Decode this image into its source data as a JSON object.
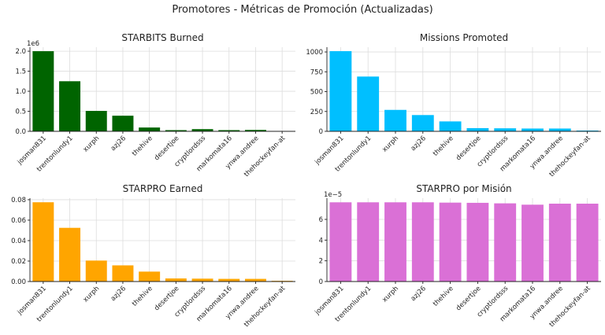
{
  "figure": {
    "title": "Promotores - Métricas de Promoción (Actualizadas)"
  },
  "chart_data": [
    {
      "type": "bar",
      "title": "STARBITS Burned",
      "categories": [
        "josman831",
        "trentonlundy1",
        "xurph",
        "azj26",
        "thehive",
        "desertjoe",
        "cryptlordsss",
        "markomata16",
        "ynwa.andree",
        "thehockeyfan-at"
      ],
      "values": [
        2000000,
        1250000,
        510000,
        390000,
        95000,
        30000,
        55000,
        30000,
        35000,
        5000
      ],
      "ylim": [
        0,
        2100000
      ],
      "yticks": [
        0,
        500000,
        1000000,
        1500000,
        2000000
      ],
      "ytick_labels": [
        "0.0",
        "0.5",
        "1.0",
        "1.5",
        "2.0"
      ],
      "multiplier_label": "1e6",
      "color": "#006400",
      "grid": true
    },
    {
      "type": "bar",
      "title": "Missions Promoted",
      "categories": [
        "josman831",
        "trentonlundy1",
        "xurph",
        "azj26",
        "thehive",
        "desertjoe",
        "cryptlordsss",
        "markomata16",
        "ynwa.andree",
        "thehockeyfan-at"
      ],
      "values": [
        1010,
        690,
        270,
        205,
        125,
        40,
        38,
        35,
        35,
        10
      ],
      "ylim": [
        0,
        1060
      ],
      "yticks": [
        0,
        250,
        500,
        750,
        1000
      ],
      "ytick_labels": [
        "0",
        "250",
        "500",
        "750",
        "1000"
      ],
      "multiplier_label": "",
      "color": "#00BFFF",
      "grid": true
    },
    {
      "type": "bar",
      "title": "STARPRO Earned",
      "categories": [
        "josman831",
        "trentonlundy1",
        "xurph",
        "azj26",
        "thehive",
        "desertjoe",
        "cryptlordsss",
        "markomata16",
        "ynwa.andree",
        "thehockeyfan-at"
      ],
      "values": [
        0.0775,
        0.0525,
        0.0205,
        0.0158,
        0.0097,
        0.003,
        0.0028,
        0.0026,
        0.0026,
        0.0007
      ],
      "ylim": [
        0,
        0.0815
      ],
      "yticks": [
        0,
        0.02,
        0.04,
        0.06,
        0.08
      ],
      "ytick_labels": [
        "0.00",
        "0.02",
        "0.04",
        "0.06",
        "0.08"
      ],
      "multiplier_label": "",
      "color": "#FFA500",
      "grid": true
    },
    {
      "type": "bar",
      "title": "STARPRO por Misión",
      "categories": [
        "josman831",
        "trentonlundy1",
        "xurph",
        "azj26",
        "thehive",
        "desertjoe",
        "cryptlordsss",
        "markomata16",
        "ynwa.andree",
        "thehockeyfan-at"
      ],
      "values": [
        7.65e-05,
        7.65e-05,
        7.65e-05,
        7.65e-05,
        7.62e-05,
        7.6e-05,
        7.55e-05,
        7.42e-05,
        7.52e-05,
        7.52e-05
      ],
      "ylim": [
        0,
        8.05e-05
      ],
      "yticks": [
        0,
        2e-05,
        4e-05,
        6e-05
      ],
      "ytick_labels": [
        "0",
        "2",
        "4",
        "6"
      ],
      "multiplier_label": "1e−5",
      "color": "#DA70D6",
      "grid": true
    }
  ]
}
